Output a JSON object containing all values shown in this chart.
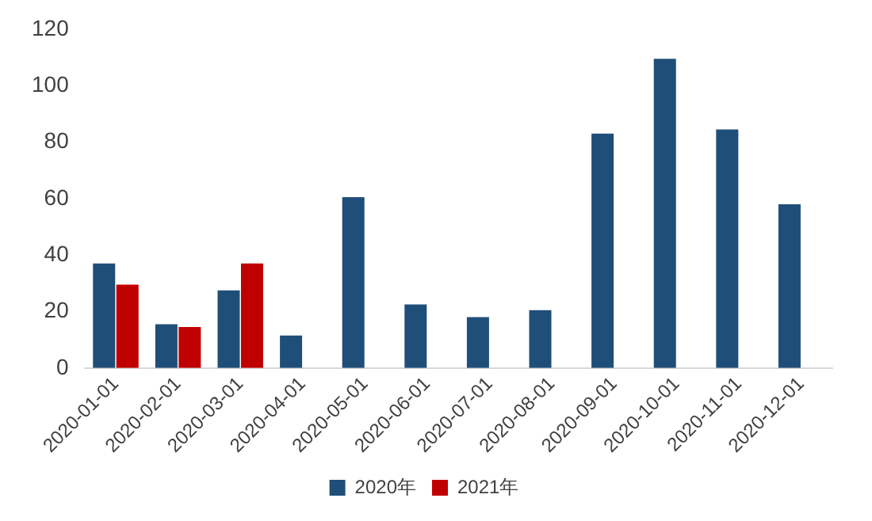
{
  "chart_data": {
    "type": "bar",
    "categories": [
      "2020-01-01",
      "2020-02-01",
      "2020-03-01",
      "2020-04-01",
      "2020-05-01",
      "2020-06-01",
      "2020-07-01",
      "2020-08-01",
      "2020-09-01",
      "2020-10-01",
      "2020-11-01",
      "2020-12-01"
    ],
    "series": [
      {
        "name": "2020年",
        "color": "#1f4e79",
        "values": [
          37,
          15.5,
          27.5,
          11.5,
          60.5,
          22.5,
          18,
          20.5,
          83,
          109.5,
          84.5,
          58
        ]
      },
      {
        "name": "2021年",
        "color": "#c00000",
        "values": [
          29.5,
          14.5,
          37,
          null,
          null,
          null,
          null,
          null,
          null,
          null,
          null,
          null
        ]
      }
    ],
    "ylim": [
      0,
      120
    ],
    "yticks": [
      0,
      20,
      40,
      60,
      80,
      100,
      120
    ],
    "grid": false,
    "legend": "bottom"
  }
}
